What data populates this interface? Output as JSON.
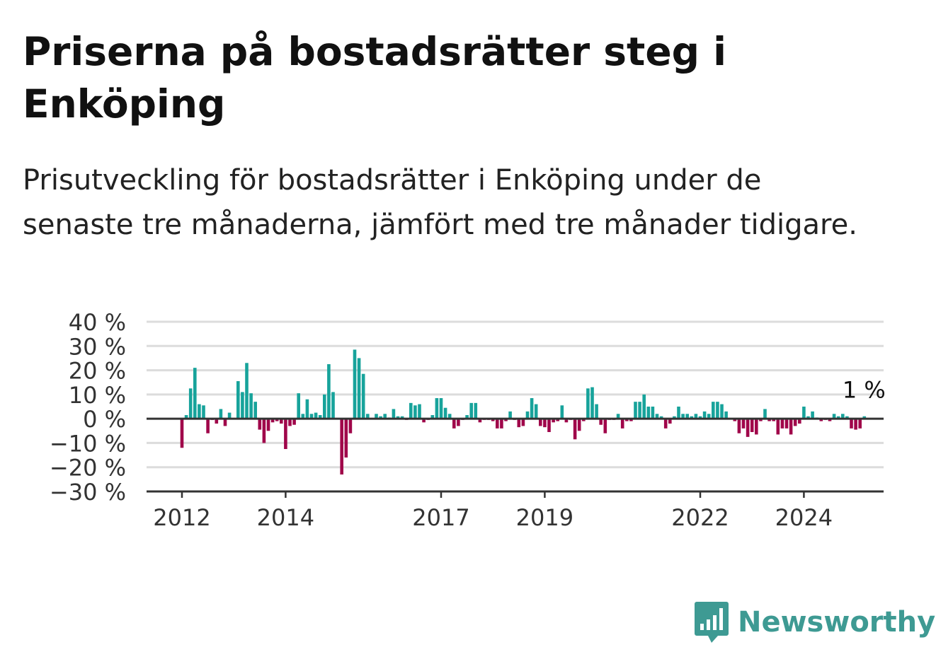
{
  "title": "Priserna på bostadsrätter steg i Enköping",
  "subtitle": "Prisutveckling för bostadsrätter i Enköping under de senaste tre månaderna, jämfört med tre månader tidigare.",
  "logo": {
    "text": "Newsworthy",
    "icon": "bar-chart-speech-bubble-icon"
  },
  "colors": {
    "positive": "#17a39b",
    "negative": "#a0064a",
    "grid": "#dcdcdc",
    "axis": "#333333",
    "brand": "#3e9a93"
  },
  "chart_data": {
    "type": "bar",
    "ylabel": "",
    "xlabel": "",
    "ylim": [
      -30,
      40
    ],
    "yticks": [
      40,
      30,
      20,
      10,
      0,
      -10,
      -20,
      -30
    ],
    "ytick_labels": [
      "40 %",
      "30 %",
      "20 %",
      "10 %",
      "0 %",
      "−10 %",
      "−20 %",
      "−30 %"
    ],
    "xticks": [
      {
        "label": "2012",
        "date": "2012-01"
      },
      {
        "label": "2014",
        "date": "2014-01"
      },
      {
        "label": "2017",
        "date": "2017-01"
      },
      {
        "label": "2019",
        "date": "2019-01"
      },
      {
        "label": "2022",
        "date": "2022-01"
      },
      {
        "label": "2024",
        "date": "2024-01"
      }
    ],
    "start_month": "2012-01",
    "values": [
      -12,
      1.5,
      12.5,
      21,
      6,
      5.5,
      -6,
      -0.5,
      -2,
      4,
      -3,
      2.5,
      0,
      15.5,
      11,
      23,
      10.5,
      7,
      -4.5,
      -10,
      -5,
      -1.5,
      -1,
      -2,
      -12.5,
      -3,
      -2.5,
      10.5,
      2,
      8,
      2,
      2.5,
      1.5,
      10,
      22.5,
      11,
      0,
      -23,
      -16,
      -6,
      28.5,
      25,
      18.5,
      2,
      0,
      2,
      1,
      2,
      0.5,
      4,
      1,
      1,
      -0.5,
      6.5,
      5.5,
      6,
      -1.5,
      -0.5,
      1.5,
      8.5,
      8.5,
      4.5,
      2,
      -4,
      -3,
      -0.5,
      1.5,
      6.5,
      6.5,
      -1.5,
      -0.5,
      -0.5,
      -1,
      -4,
      -4,
      -1,
      3,
      -0.5,
      -3.5,
      -3,
      3,
      8.5,
      6,
      -3,
      -3.5,
      -5.5,
      -1.5,
      -1,
      5.5,
      -1.5,
      -0.5,
      -8.5,
      -5,
      -1,
      12.5,
      13,
      6,
      -2.5,
      -6,
      -0.5,
      -0.5,
      2,
      -4,
      -1,
      -1,
      7,
      7,
      10,
      5,
      5,
      2,
      1,
      -4,
      -2,
      1,
      5,
      2,
      2,
      1,
      2,
      1,
      3,
      2,
      7,
      7,
      6,
      3,
      0,
      -1,
      -6,
      -4,
      -7.5,
      -5.5,
      -6.5,
      -1,
      4,
      -1,
      -1,
      -6.5,
      -4,
      -4,
      -6.5,
      -3,
      -2,
      5,
      1,
      3,
      0.5,
      -1,
      -0.5,
      -1,
      2,
      1,
      2,
      1,
      -4,
      -4.5,
      -4,
      1
    ],
    "annotation": {
      "text": "1 %",
      "value": 1
    }
  }
}
